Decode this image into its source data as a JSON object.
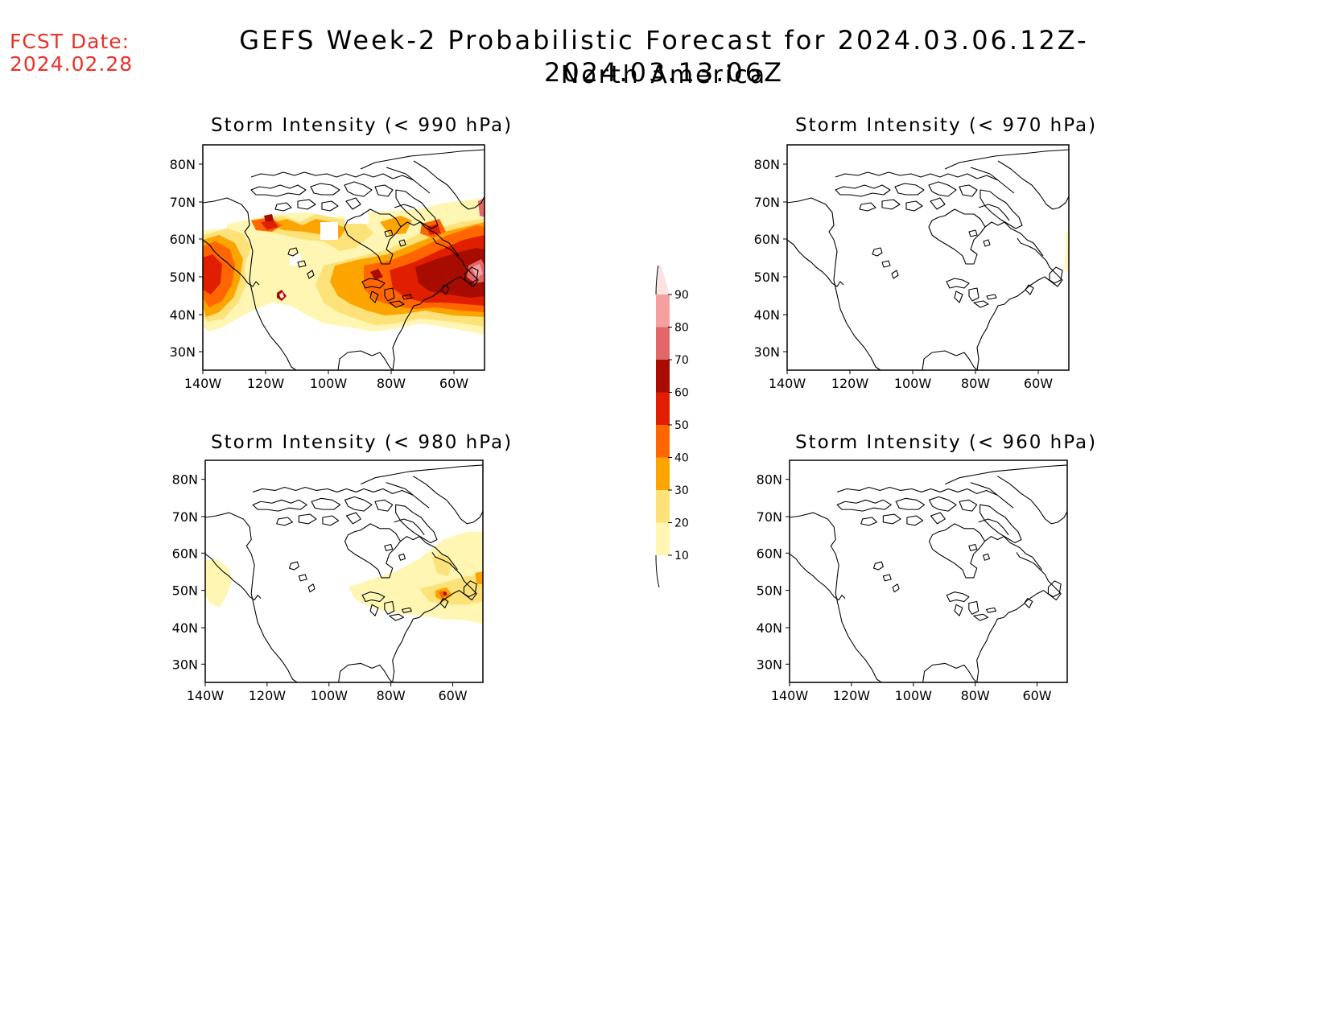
{
  "forecast_date": {
    "label": "FCST Date:",
    "value": "2024.02.28"
  },
  "title": "GEFS Week-2 Probabilistic Forecast for 2024.03.06.12Z-2024.03.13.06Z",
  "subtitle": "North America",
  "map": {
    "lat_ticks": [
      "80N",
      "70N",
      "60N",
      "50N",
      "40N",
      "30N"
    ],
    "lon_ticks": [
      "140W",
      "120W",
      "100W",
      "80W",
      "60W"
    ]
  },
  "panels": [
    {
      "id": "p990",
      "title": "Storm Intensity (< 990 hPa)"
    },
    {
      "id": "p970",
      "title": "Storm Intensity (< 970 hPa)"
    },
    {
      "id": "p980",
      "title": "Storm Intensity (< 980 hPa)"
    },
    {
      "id": "p960",
      "title": "Storm Intensity (< 960 hPa)"
    }
  ],
  "colorbar": {
    "labels": [
      "90",
      "80",
      "70",
      "60",
      "50",
      "40",
      "30",
      "20",
      "10"
    ],
    "colors": {
      "c10": "#fff6b4",
      "c20": "#fde27a",
      "c30": "#fca500",
      "c40": "#ff6600",
      "c50": "#e01e00",
      "c60": "#a80c00",
      "c70": "#e06868",
      "c80": "#f4a0a0",
      "c90": "#fde2e2"
    }
  }
}
